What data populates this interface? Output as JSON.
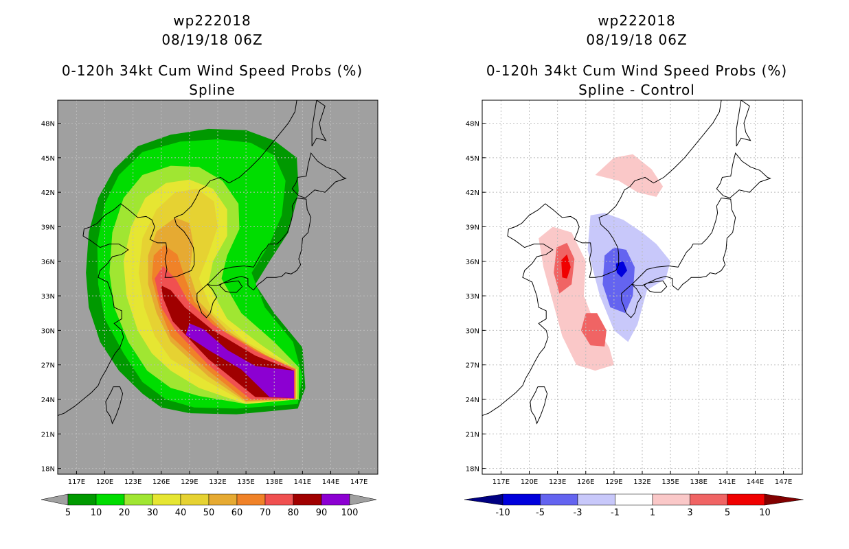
{
  "chart_data": [
    {
      "type": "heatmap",
      "title": "wp222018",
      "subtitle": "08/19/18 06Z",
      "variable": "0-120h 34kt Cum Wind Speed Probs (%)",
      "panel_label": "Spline",
      "xlabel": "",
      "ylabel": "",
      "x_ticks": [
        "117E",
        "120E",
        "123E",
        "126E",
        "129E",
        "132E",
        "135E",
        "138E",
        "141E",
        "144E",
        "147E"
      ],
      "y_ticks": [
        "18N",
        "21N",
        "24N",
        "27N",
        "30N",
        "33N",
        "36N",
        "39N",
        "42N",
        "45N",
        "48N"
      ],
      "xlim": [
        115,
        149
      ],
      "ylim": [
        17.5,
        50
      ],
      "colorbar": {
        "labels": [
          "5",
          "10",
          "20",
          "30",
          "40",
          "50",
          "60",
          "70",
          "80",
          "90",
          "100"
        ],
        "colors": [
          "#009900",
          "#00dd00",
          "#a0e632",
          "#e6e632",
          "#e6d232",
          "#e6aa32",
          "#f08228",
          "#f05050",
          "#a00000",
          "#8c00d2"
        ],
        "under_color": "#a0a0a0",
        "over_color": "#a0a0a0"
      },
      "probability_levels": [
        {
          "min": 5,
          "lon_lat": [
            [
              126,
              23.3
            ],
            [
              124,
              24.5
            ],
            [
              121.5,
              26.5
            ],
            [
              119.5,
              29
            ],
            [
              118.3,
              32
            ],
            [
              118,
              35
            ],
            [
              118.3,
              38.5
            ],
            [
              119.3,
              41.5
            ],
            [
              121,
              44
            ],
            [
              123.5,
              46
            ],
            [
              127,
              47
            ],
            [
              131,
              47.5
            ],
            [
              135,
              47.4
            ],
            [
              138,
              46.5
            ],
            [
              140.4,
              45
            ],
            [
              140.6,
              42
            ],
            [
              139.5,
              38.5
            ],
            [
              137.5,
              36
            ],
            [
              136,
              34
            ],
            [
              138,
              31.5
            ],
            [
              141,
              28.5
            ],
            [
              141.3,
              25
            ],
            [
              140.5,
              23.2
            ],
            [
              134,
              22.7
            ],
            [
              129,
              22.8
            ]
          ]
        },
        {
          "min": 10,
          "lon_lat": [
            [
              126.5,
              24
            ],
            [
              124,
              25.5
            ],
            [
              122,
              28
            ],
            [
              120,
              31
            ],
            [
              119.3,
              34
            ],
            [
              119.2,
              37.5
            ],
            [
              120,
              41
            ],
            [
              121.5,
              43.5
            ],
            [
              124,
              45.5
            ],
            [
              128,
              46.4
            ],
            [
              132,
              46.6
            ],
            [
              135.5,
              46.3
            ],
            [
              138,
              45.2
            ],
            [
              139.2,
              43
            ],
            [
              138.8,
              40
            ],
            [
              137.5,
              37.5
            ],
            [
              135.6,
              35
            ],
            [
              137,
              32
            ],
            [
              140,
              29
            ],
            [
              141,
              26
            ],
            [
              140.5,
              23.6
            ],
            [
              134,
              23.2
            ],
            [
              129.5,
              23.3
            ]
          ]
        },
        {
          "min": 20,
          "lon_lat": [
            [
              127,
              25
            ],
            [
              124.5,
              26.5
            ],
            [
              122.5,
              29
            ],
            [
              121,
              32
            ],
            [
              120.5,
              35
            ],
            [
              120.8,
              38.5
            ],
            [
              122,
              41.5
            ],
            [
              124,
              43.5
            ],
            [
              127,
              44.3
            ],
            [
              130,
              44.2
            ],
            [
              132.5,
              43
            ],
            [
              134.2,
              41
            ],
            [
              134.3,
              38.8
            ],
            [
              133,
              36.5
            ],
            [
              132.4,
              34.5
            ],
            [
              134.5,
              31.5
            ],
            [
              138,
              29
            ],
            [
              140.6,
              26.8
            ],
            [
              140.6,
              24
            ],
            [
              135,
              23.6
            ],
            [
              130,
              24.3
            ]
          ]
        },
        {
          "min": 30,
          "lon_lat": [
            [
              127,
              26.5
            ],
            [
              125,
              28
            ],
            [
              123.5,
              30
            ],
            [
              122.3,
              33
            ],
            [
              122,
              36
            ],
            [
              122.8,
              39
            ],
            [
              124.3,
              41.5
            ],
            [
              126.5,
              42.8
            ],
            [
              129,
              43.1
            ],
            [
              131.5,
              42.3
            ],
            [
              133,
              40.5
            ],
            [
              133,
              38.2
            ],
            [
              131.5,
              36
            ],
            [
              131,
              34
            ],
            [
              133,
              31
            ],
            [
              136.5,
              28.8
            ],
            [
              140.4,
              26.6
            ],
            [
              140.4,
              24
            ],
            [
              135,
              23.6
            ],
            [
              130,
              25
            ]
          ]
        },
        {
          "min": 40,
          "lon_lat": [
            [
              127,
              27.5
            ],
            [
              125.3,
              29.5
            ],
            [
              124.2,
              32
            ],
            [
              123.6,
              35
            ],
            [
              124,
              38
            ],
            [
              125.5,
              40.5
            ],
            [
              127.5,
              42
            ],
            [
              129.8,
              42.3
            ],
            [
              131.6,
              41.2
            ],
            [
              132,
              39
            ],
            [
              131,
              36.6
            ],
            [
              130,
              34.5
            ],
            [
              131.5,
              31.5
            ],
            [
              135,
              29
            ],
            [
              140.3,
              26.7
            ],
            [
              140.3,
              24
            ],
            [
              135,
              23.7
            ],
            [
              131,
              25.5
            ]
          ]
        },
        {
          "min": 50,
          "lon_lat": [
            [
              127,
              29
            ],
            [
              125.5,
              31.5
            ],
            [
              124.6,
              34
            ],
            [
              124.6,
              36.5
            ],
            [
              125.5,
              38.6
            ],
            [
              127.5,
              39.8
            ],
            [
              129,
              39.3
            ],
            [
              129.4,
              37.5
            ],
            [
              129,
              35
            ],
            [
              130,
              32.5
            ],
            [
              133,
              30
            ],
            [
              137,
              27.8
            ],
            [
              140.3,
              26.7
            ],
            [
              140.3,
              24
            ],
            [
              135,
              23.8
            ],
            [
              131,
              26
            ]
          ]
        },
        {
          "min": 60,
          "lon_lat": [
            [
              127,
              29.5
            ],
            [
              125.8,
              32
            ],
            [
              125,
              34.5
            ],
            [
              125.2,
              36.5
            ],
            [
              126.3,
              37.4
            ],
            [
              127.7,
              36.6
            ],
            [
              128.5,
              34.6
            ],
            [
              129.5,
              32.5
            ],
            [
              132.5,
              30
            ],
            [
              137,
              27.9
            ],
            [
              140.2,
              26.6
            ],
            [
              140.2,
              24
            ],
            [
              135,
              23.9
            ],
            [
              131,
              26.5
            ]
          ]
        },
        {
          "min": 70,
          "lon_lat": [
            [
              127.5,
              30
            ],
            [
              126,
              32
            ],
            [
              125.3,
              34.5
            ],
            [
              126.2,
              35.6
            ],
            [
              127.6,
              34.4
            ],
            [
              128.8,
              32.6
            ],
            [
              131.5,
              30.5
            ],
            [
              136,
              28.2
            ],
            [
              140.2,
              26.6
            ],
            [
              140.2,
              24
            ],
            [
              135.5,
              24
            ],
            [
              131,
              27
            ]
          ]
        },
        {
          "min": 80,
          "lon_lat": [
            [
              127.2,
              30.8
            ],
            [
              126.2,
              32.8
            ],
            [
              126,
              33.9
            ],
            [
              127,
              33.5
            ],
            [
              128.5,
              32
            ],
            [
              131.5,
              30
            ],
            [
              136,
              27.8
            ],
            [
              140.1,
              26.5
            ],
            [
              140.1,
              24.1
            ],
            [
              136,
              24.2
            ],
            [
              131,
              27.5
            ]
          ]
        },
        {
          "min": 90,
          "lon_lat": [
            [
              129,
              30.6
            ],
            [
              128.6,
              29.6
            ],
            [
              131,
              28.3
            ],
            [
              134.5,
              26.6
            ],
            [
              137.5,
              24.2
            ],
            [
              140.1,
              24.1
            ],
            [
              140.1,
              26.5
            ],
            [
              136,
              26.9
            ],
            [
              133,
              28.3
            ],
            [
              130.5,
              30.1
            ]
          ]
        }
      ]
    },
    {
      "type": "heatmap",
      "title": "wp222018",
      "subtitle": "08/19/18 06Z",
      "variable": "0-120h 34kt Cum Wind Speed Probs (%)",
      "panel_label": "Spline - Control",
      "xlabel": "",
      "ylabel": "",
      "x_ticks": [
        "117E",
        "120E",
        "123E",
        "126E",
        "129E",
        "132E",
        "135E",
        "138E",
        "141E",
        "144E",
        "147E"
      ],
      "y_ticks": [
        "18N",
        "21N",
        "24N",
        "27N",
        "30N",
        "33N",
        "36N",
        "39N",
        "42N",
        "45N",
        "48N"
      ],
      "xlim": [
        115,
        149
      ],
      "ylim": [
        17.5,
        50
      ],
      "colorbar": {
        "labels": [
          "-10",
          "-5",
          "-3",
          "-1",
          "1",
          "3",
          "5",
          "10"
        ],
        "colors": [
          "#0000dc",
          "#6464f0",
          "#c8c8fa",
          "#ffffff",
          "#fac8c8",
          "#f06464",
          "#f00000"
        ],
        "under_color": "#000082",
        "over_color": "#820000"
      },
      "difference_regions": [
        {
          "level": "1 to 3",
          "lon_lat": [
            [
              125,
              27
            ],
            [
              123.5,
              29.5
            ],
            [
              122.5,
              32.5
            ],
            [
              121.5,
              35.5
            ],
            [
              121,
              38
            ],
            [
              122.5,
              39
            ],
            [
              124.5,
              38.5
            ],
            [
              126,
              36
            ],
            [
              125.8,
              33
            ],
            [
              127,
              30.5
            ],
            [
              128.5,
              28.5
            ],
            [
              129,
              27
            ],
            [
              127,
              26.5
            ]
          ]
        },
        {
          "level": "1 to 3",
          "lon_lat": [
            [
              127,
              43.5
            ],
            [
              129,
              45
            ],
            [
              131,
              45.3
            ],
            [
              133,
              44
            ],
            [
              134.2,
              42.5
            ],
            [
              133.5,
              41.6
            ],
            [
              131.5,
              42
            ],
            [
              129.5,
              43
            ]
          ]
        },
        {
          "level": "3 to 5",
          "lon_lat": [
            [
              123.2,
              33.2
            ],
            [
              122.6,
              35
            ],
            [
              122.9,
              37.2
            ],
            [
              124,
              37.6
            ],
            [
              124.8,
              36.2
            ],
            [
              124.5,
              34
            ]
          ]
        },
        {
          "level": "3 to 5",
          "lon_lat": [
            [
              126,
              31.5
            ],
            [
              125.5,
              30
            ],
            [
              126.5,
              28.7
            ],
            [
              128,
              28.6
            ],
            [
              128.2,
              30
            ],
            [
              127.2,
              31.5
            ]
          ]
        },
        {
          "level": "5 to 10",
          "lon_lat": [
            [
              123.5,
              34.6
            ],
            [
              123.4,
              36.1
            ],
            [
              124,
              36.6
            ],
            [
              124.4,
              35.5
            ],
            [
              124,
              34.5
            ]
          ]
        },
        {
          "level": "-3 to -1",
          "lon_lat": [
            [
              126.5,
              40
            ],
            [
              126.2,
              37
            ],
            [
              127.5,
              33
            ],
            [
              129,
              30
            ],
            [
              130.5,
              29
            ],
            [
              131.5,
              30.5
            ],
            [
              132.5,
              33.5
            ],
            [
              134.5,
              34.5
            ],
            [
              135,
              36
            ],
            [
              133.5,
              37.5
            ],
            [
              132,
              38.5
            ],
            [
              130,
              39.6
            ],
            [
              128,
              40.2
            ]
          ]
        },
        {
          "level": "-5 to -3",
          "lon_lat": [
            [
              128,
              36.5
            ],
            [
              127.8,
              34
            ],
            [
              128.6,
              32
            ],
            [
              130.2,
              31.5
            ],
            [
              131,
              33
            ],
            [
              131.2,
              35.5
            ],
            [
              130.3,
              37
            ],
            [
              129,
              37.2
            ]
          ]
        },
        {
          "level": "-10 to -5",
          "lon_lat": [
            [
              129.3,
              35
            ],
            [
              129.2,
              35.8
            ],
            [
              130,
              36
            ],
            [
              130.4,
              35.2
            ],
            [
              129.8,
              34.6
            ]
          ]
        }
      ]
    }
  ]
}
